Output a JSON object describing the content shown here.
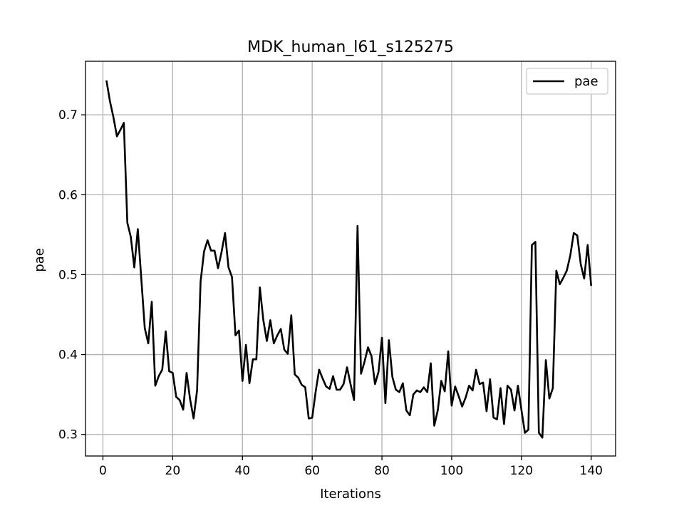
{
  "chart_data": {
    "type": "line",
    "title": "MDK_human_l61_s125275",
    "xlabel": "Iterations",
    "ylabel": "pae",
    "xlim": [
      -5,
      147
    ],
    "ylim": [
      0.273,
      0.767
    ],
    "xticks": [
      0,
      20,
      40,
      60,
      80,
      100,
      120,
      140
    ],
    "xtick_labels": [
      "0",
      "20",
      "40",
      "60",
      "80",
      "100",
      "120",
      "140"
    ],
    "yticks": [
      0.3,
      0.4,
      0.5,
      0.6,
      0.7
    ],
    "ytick_labels": [
      "0.3",
      "0.4",
      "0.5",
      "0.6",
      "0.7"
    ],
    "grid": true,
    "legend": {
      "position": "top-right",
      "entries": [
        "pae"
      ]
    },
    "series": [
      {
        "name": "pae",
        "color": "#000000",
        "x": [
          1,
          2,
          3,
          4,
          5,
          6,
          7,
          8,
          9,
          10,
          11,
          12,
          13,
          14,
          15,
          16,
          17,
          18,
          19,
          20,
          21,
          22,
          23,
          24,
          25,
          26,
          27,
          28,
          29,
          30,
          31,
          32,
          33,
          34,
          35,
          36,
          37,
          38,
          39,
          40,
          41,
          42,
          43,
          44,
          45,
          46,
          47,
          48,
          49,
          50,
          51,
          52,
          53,
          54,
          55,
          56,
          57,
          58,
          59,
          60,
          61,
          62,
          63,
          64,
          65,
          66,
          67,
          68,
          69,
          70,
          71,
          72,
          73,
          74,
          75,
          76,
          77,
          78,
          79,
          80,
          81,
          82,
          83,
          84,
          85,
          86,
          87,
          88,
          89,
          90,
          91,
          92,
          93,
          94,
          95,
          96,
          97,
          98,
          99,
          100,
          101,
          102,
          103,
          104,
          105,
          106,
          107,
          108,
          109,
          110,
          111,
          112,
          113,
          114,
          115,
          116,
          117,
          118,
          119,
          120,
          121,
          122,
          123,
          124,
          125,
          126,
          127,
          128,
          129,
          130,
          131,
          132,
          133,
          134,
          135,
          136,
          137,
          138,
          139,
          140
        ],
        "values": [
          0.743,
          0.717,
          0.697,
          0.673,
          0.681,
          0.69,
          0.565,
          0.547,
          0.509,
          0.557,
          0.495,
          0.433,
          0.414,
          0.466,
          0.361,
          0.373,
          0.381,
          0.429,
          0.379,
          0.377,
          0.347,
          0.343,
          0.331,
          0.377,
          0.344,
          0.32,
          0.355,
          0.491,
          0.529,
          0.543,
          0.53,
          0.53,
          0.508,
          0.528,
          0.552,
          0.509,
          0.497,
          0.424,
          0.43,
          0.367,
          0.412,
          0.364,
          0.394,
          0.394,
          0.484,
          0.443,
          0.417,
          0.443,
          0.414,
          0.424,
          0.432,
          0.406,
          0.401,
          0.449,
          0.375,
          0.371,
          0.362,
          0.359,
          0.32,
          0.321,
          0.354,
          0.381,
          0.37,
          0.36,
          0.357,
          0.373,
          0.356,
          0.356,
          0.363,
          0.384,
          0.363,
          0.343,
          0.561,
          0.376,
          0.391,
          0.409,
          0.398,
          0.363,
          0.378,
          0.421,
          0.339,
          0.418,
          0.372,
          0.356,
          0.353,
          0.364,
          0.33,
          0.324,
          0.35,
          0.355,
          0.353,
          0.359,
          0.353,
          0.389,
          0.311,
          0.33,
          0.367,
          0.354,
          0.404,
          0.336,
          0.36,
          0.348,
          0.335,
          0.346,
          0.361,
          0.355,
          0.381,
          0.363,
          0.365,
          0.329,
          0.369,
          0.321,
          0.319,
          0.358,
          0.313,
          0.361,
          0.356,
          0.33,
          0.361,
          0.331,
          0.302,
          0.306,
          0.537,
          0.541,
          0.302,
          0.296,
          0.393,
          0.345,
          0.358,
          0.505,
          0.488,
          0.496,
          0.505,
          0.524,
          0.552,
          0.549,
          0.513,
          0.495,
          0.537,
          0.486
        ]
      }
    ]
  }
}
